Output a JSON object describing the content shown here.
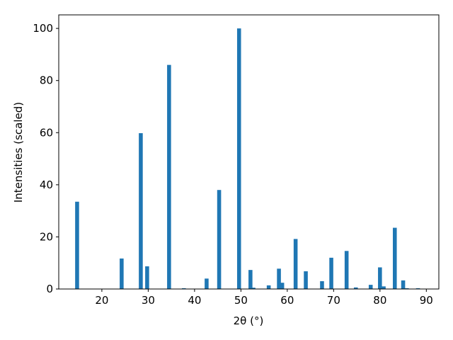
{
  "chart_data": {
    "type": "bar",
    "x_label": "2θ (°)",
    "y_label": "Intensities (scaled)",
    "x": [
      14.66,
      24.27,
      28.4,
      29.77,
      34.5,
      37.7,
      42.6,
      45.3,
      49.6,
      52.06,
      52.7,
      56.0,
      58.2,
      58.9,
      61.8,
      64.0,
      67.5,
      69.5,
      72.8,
      74.8,
      78.0,
      80.0,
      80.8,
      83.2,
      85.0,
      85.8,
      88.2
    ],
    "values": [
      33.5,
      11.7,
      59.8,
      8.7,
      86,
      0.3,
      4,
      38,
      100,
      7.3,
      0.5,
      1.4,
      7.8,
      2.4,
      19.2,
      6.8,
      3,
      12,
      14.6,
      0.6,
      1.6,
      8.3,
      1,
      23.5,
      3.3,
      0.3,
      0.3
    ],
    "color": "#1f77b4",
    "xlim": [
      10.7,
      92.7
    ],
    "ylim": [
      0,
      105.2
    ],
    "xticks": [
      20,
      30,
      40,
      50,
      60,
      70,
      80,
      90
    ],
    "yticks": [
      0,
      20,
      40,
      60,
      80,
      100
    ]
  }
}
